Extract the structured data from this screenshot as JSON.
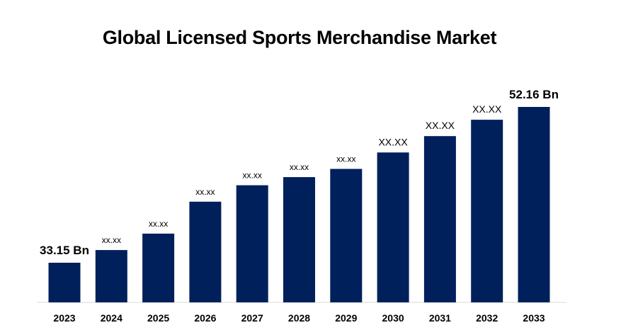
{
  "chart_data": {
    "type": "bar",
    "title": "Global Licensed Sports Merchandise Market",
    "xlabel": "",
    "ylabel": "",
    "categories": [
      "2023",
      "2024",
      "2025",
      "2026",
      "2027",
      "2028",
      "2029",
      "2030",
      "2031",
      "2032",
      "2033"
    ],
    "values": [
      33.15,
      34.7,
      36.7,
      40.6,
      42.6,
      43.6,
      44.6,
      46.6,
      48.6,
      50.6,
      52.16
    ],
    "data_labels": [
      "33.15 Bn",
      "xx.xx",
      "xx.xx",
      "xx.xx",
      "xx.xx",
      "xx.xx",
      "xx.xx",
      "XX.XX",
      "XX.XX",
      "XX.XX",
      "52.16 Bn"
    ],
    "ylim": [
      30,
      53
    ],
    "grid": false,
    "legend": "none",
    "colors": {
      "bar": "#00205b",
      "axis": "#d9d9d9",
      "text": "#000000"
    }
  }
}
